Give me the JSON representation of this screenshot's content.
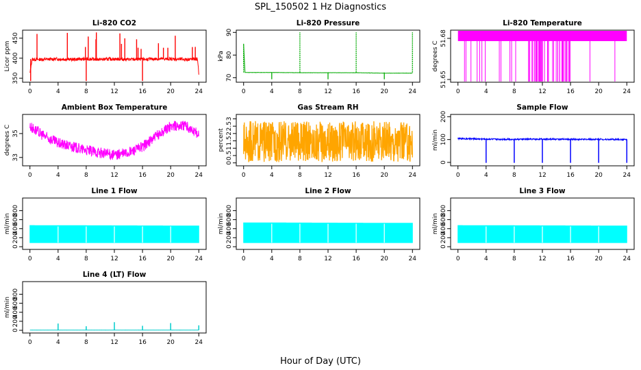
{
  "figure": {
    "title": "SPL_150502  1 Hz Diagnostics",
    "xlabel": "Hour of Day (UTC)"
  },
  "chart_data": [
    {
      "id": "co2",
      "type": "line",
      "title": "Li-820 CO2",
      "ylabel": "Licor ppm",
      "color": "#ff0000",
      "xlim": [
        0,
        24
      ],
      "xticks": [
        0,
        4,
        8,
        12,
        16,
        20,
        24
      ],
      "ylim": [
        340,
        470
      ],
      "yticks": [
        350,
        400,
        450
      ],
      "series": [
        {
          "name": "CO2",
          "x": [
            0,
            0.3,
            2,
            4,
            6,
            8,
            10,
            12,
            14,
            16,
            18,
            20,
            22,
            23.8,
            24
          ],
          "values": [
            362,
            397,
            397,
            398,
            397,
            398,
            397,
            398,
            397,
            397,
            398,
            398,
            397,
            398,
            362
          ]
        }
      ]
    },
    {
      "id": "pressure",
      "type": "line",
      "title": "Li-820 Pressure",
      "ylabel": "kPa",
      "color": "#00aa00",
      "xlim": [
        0,
        24
      ],
      "xticks": [
        0,
        4,
        8,
        12,
        16,
        20,
        24
      ],
      "ylim": [
        68,
        91
      ],
      "yticks": [
        70,
        80,
        90
      ],
      "series": [
        {
          "name": "Pressure",
          "x": [
            0,
            0.2,
            4,
            8,
            12,
            16,
            20,
            24
          ],
          "values": [
            85,
            72.3,
            72.3,
            72.2,
            72.2,
            72.2,
            72.0,
            72.0
          ]
        }
      ]
    },
    {
      "id": "licor_temp",
      "type": "line",
      "title": "Li-820 Temperature",
      "ylabel": "degrees C",
      "color": "#ff00ff",
      "xlim": [
        0,
        24
      ],
      "xticks": [
        0,
        4,
        8,
        12,
        16,
        20,
        24
      ],
      "ylim": [
        51.648,
        51.686
      ],
      "yticks": [
        51.65,
        51.68
      ],
      "series": [
        {
          "name": "Temperature",
          "x": [
            0,
            24
          ],
          "values": [
            51.68,
            51.68
          ]
        }
      ]
    },
    {
      "id": "box_temp",
      "type": "line",
      "title": "Ambient Box Temperature",
      "ylabel": "degrees C",
      "color": "#ff00ff",
      "xlim": [
        0,
        24
      ],
      "xticks": [
        0,
        4,
        8,
        12,
        16,
        20,
        24
      ],
      "ylim": [
        32.3,
        36.6
      ],
      "yticks": [
        33,
        35
      ],
      "series": [
        {
          "name": "Box Temp",
          "x": [
            0,
            2,
            4,
            6,
            8,
            10,
            12,
            14,
            16,
            18,
            20,
            22,
            24
          ],
          "values": [
            35.6,
            34.8,
            34.2,
            33.9,
            33.6,
            33.4,
            33.2,
            33.4,
            33.9,
            34.8,
            35.6,
            35.7,
            34.9
          ]
        }
      ]
    },
    {
      "id": "rh",
      "type": "line",
      "title": "Gas Stream RH",
      "ylabel": "percent",
      "color": "#ffa500",
      "xlim": [
        0,
        24
      ],
      "xticks": [
        0,
        4,
        8,
        12,
        16,
        20,
        24
      ],
      "ylim": [
        -0.2,
        3.3
      ],
      "yticks": [
        0.0,
        0.5,
        1.0,
        1.5,
        2.0,
        2.5,
        3.0
      ],
      "series": [
        {
          "name": "RH",
          "x": [
            0,
            24
          ],
          "values": [
            1.4,
            1.4
          ]
        }
      ]
    },
    {
      "id": "sample_flow",
      "type": "line",
      "title": "Sample Flow",
      "ylabel": "ml/min",
      "color": "#0000ff",
      "xlim": [
        0,
        24
      ],
      "xticks": [
        0,
        4,
        8,
        12,
        16,
        20,
        24
      ],
      "ylim": [
        -15,
        210
      ],
      "yticks": [
        0,
        100,
        200
      ],
      "series": [
        {
          "name": "Sample Flow",
          "x": [
            0,
            4,
            8,
            12,
            16,
            20,
            24
          ],
          "values": [
            104,
            102,
            101,
            102,
            101,
            101,
            100
          ]
        }
      ]
    },
    {
      "id": "line1",
      "type": "area",
      "title": "Line 1 Flow",
      "ylabel": "ml/min",
      "color": "#00ffff",
      "xlim": [
        0,
        24
      ],
      "xticks": [
        0,
        4,
        8,
        12,
        16,
        20,
        24
      ],
      "ylim": [
        -60,
        1080
      ],
      "yticks": [
        0,
        200,
        400,
        600,
        800
      ],
      "series": [
        {
          "name": "Line 1 Flow",
          "x": [
            0,
            24
          ],
          "low": [
            90,
            90
          ],
          "values": [
            470,
            460
          ]
        }
      ]
    },
    {
      "id": "line2",
      "type": "area",
      "title": "Line 2 Flow",
      "ylabel": "ml/min",
      "color": "#00ffff",
      "xlim": [
        0,
        24
      ],
      "xticks": [
        0,
        4,
        8,
        12,
        16,
        20,
        24
      ],
      "ylim": [
        -60,
        1080
      ],
      "yticks": [
        0,
        200,
        400,
        600,
        800
      ],
      "series": [
        {
          "name": "Line 2 Flow",
          "x": [
            0,
            24
          ],
          "low": [
            90,
            90
          ],
          "values": [
            530,
            520
          ]
        }
      ]
    },
    {
      "id": "line3",
      "type": "area",
      "title": "Line 3 Flow",
      "ylabel": "ml/min",
      "color": "#00ffff",
      "xlim": [
        0,
        24
      ],
      "xticks": [
        0,
        4,
        8,
        12,
        16,
        20,
        24
      ],
      "ylim": [
        -60,
        1080
      ],
      "yticks": [
        0,
        200,
        400,
        600,
        800
      ],
      "series": [
        {
          "name": "Line 3 Flow",
          "x": [
            0,
            24
          ],
          "low": [
            90,
            90
          ],
          "values": [
            470,
            460
          ]
        }
      ]
    },
    {
      "id": "line4",
      "type": "line",
      "title": "Line 4 (LT) Flow",
      "ylabel": "ml/min",
      "color": "#00cccc",
      "xlim": [
        0,
        24
      ],
      "xticks": [
        0,
        4,
        8,
        12,
        16,
        20,
        24
      ],
      "ylim": [
        -60,
        1080
      ],
      "yticks": [
        0,
        200,
        400,
        600,
        800
      ],
      "series": [
        {
          "name": "Line 4 Flow",
          "x": [
            0,
            4,
            8,
            12,
            16,
            20,
            24
          ],
          "values": [
            5,
            5,
            5,
            5,
            5,
            5,
            5
          ]
        }
      ],
      "spikes": {
        "x": [
          4,
          8,
          12,
          16,
          20,
          24
        ],
        "values": [
          150,
          90,
          180,
          100,
          160,
          110
        ]
      }
    }
  ]
}
